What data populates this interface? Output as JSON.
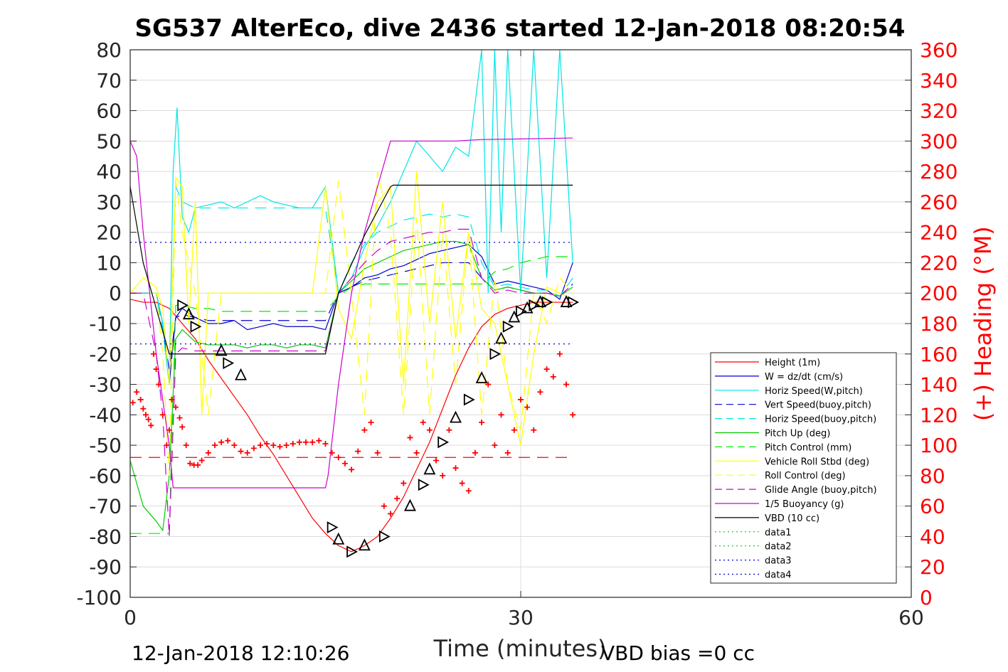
{
  "chart_data": {
    "type": "line",
    "title": "SG537 AlterEco, dive 2436 started 12-Jan-2018 08:20:54",
    "xlabel": "Time (minutes)",
    "ylabel_left": "",
    "ylabel_right": "(+) Heading (°M)",
    "xlim": [
      0,
      60
    ],
    "ylim": [
      -100,
      80
    ],
    "ylim_right": [
      0,
      360
    ],
    "x_ticks": [
      "0",
      "30",
      "60"
    ],
    "y_ticks": [
      "80",
      "70",
      "60",
      "50",
      "40",
      "30",
      "20",
      "10",
      "0",
      "-10",
      "-20",
      "-30",
      "-40",
      "-50",
      "-60",
      "-70",
      "-80",
      "-90",
      "-100"
    ],
    "y_ticks_right": [
      "360",
      "340",
      "320",
      "300",
      "280",
      "260",
      "240",
      "220",
      "200",
      "180",
      "160",
      "140",
      "120",
      "100",
      "80",
      "60",
      "40",
      "20",
      "0"
    ],
    "grid": true,
    "legend_position": "bottom-right",
    "footer_left": "12-Jan-2018 12:10:26",
    "footer_right": "VBD bias =0 cc",
    "colors": {
      "height": "#ff0000",
      "w": "#0000cc",
      "horiz_w": "#00e5e5",
      "vert_buoy": "#0000cc",
      "horiz_buoy": "#00e5e5",
      "pitch_up": "#00cc00",
      "pitch_ctrl": "#00ee00",
      "roll": "#ffff00",
      "roll_ctrl": "#ffff00",
      "glide": "#cc00cc",
      "buoyancy": "#cc00cc",
      "vbd": "#000000",
      "heading": "#ff0000"
    },
    "series": [
      {
        "name": "Height (1m)",
        "style": "solid",
        "color": "#ff0000",
        "x": [
          0,
          1,
          2,
          3,
          4,
          5,
          6,
          7,
          8,
          9,
          10,
          11,
          12,
          13,
          14,
          15,
          16,
          17,
          18,
          19,
          20,
          21,
          22,
          23,
          24,
          25,
          26,
          27,
          28,
          29,
          30,
          31,
          32,
          33,
          34
        ],
        "y": [
          -2,
          -3,
          -3,
          -5,
          -10,
          -15,
          -22,
          -28,
          -34,
          -40,
          -47,
          -53,
          -60,
          -67,
          -74,
          -79,
          -83,
          -85,
          -83,
          -80,
          -74,
          -67,
          -58,
          -49,
          -38,
          -27,
          -18,
          -11,
          -7,
          -5,
          -4,
          -3,
          -3,
          -3,
          -3
        ]
      },
      {
        "name": "W = dz/dt (cm/s)",
        "style": "solid",
        "color": "#0000cc",
        "x": [
          0,
          1,
          2,
          2.5,
          3,
          3.5,
          4,
          5,
          6,
          7,
          8,
          9,
          10,
          11,
          12,
          13,
          14,
          15,
          16,
          17,
          18,
          19,
          20,
          21,
          22,
          23,
          24,
          25,
          26,
          27,
          28,
          29,
          30,
          31,
          32,
          33,
          34
        ],
        "y": [
          0,
          0,
          0,
          -10,
          -30,
          -8,
          -5,
          -8,
          -10,
          -10,
          -9,
          -12,
          -11,
          -10,
          -11,
          -11,
          -11,
          -12,
          0,
          2,
          5,
          6,
          8,
          9,
          11,
          13,
          14,
          15,
          16,
          12,
          3,
          4,
          3,
          2,
          1,
          -2,
          10
        ]
      },
      {
        "name": "Horiz Speed(W,pitch)",
        "style": "solid",
        "color": "#00e5e5",
        "x": [
          0,
          1,
          2,
          2.5,
          3,
          3.3,
          3.6,
          4,
          4.5,
          5,
          6,
          7,
          8,
          9,
          10,
          11,
          12,
          13,
          14,
          15,
          16,
          17,
          18,
          19,
          20,
          21,
          22,
          23,
          24,
          25,
          26,
          27,
          27.5,
          28,
          28.5,
          29,
          30,
          31,
          32,
          33,
          34
        ],
        "y": [
          0,
          0,
          0,
          -10,
          -30,
          40,
          61,
          25,
          20,
          28,
          29,
          30,
          28,
          30,
          32,
          30,
          29,
          28,
          28,
          35,
          0,
          5,
          15,
          22,
          30,
          40,
          50,
          45,
          40,
          48,
          45,
          80,
          0,
          80,
          20,
          80,
          0,
          80,
          5,
          80,
          10
        ]
      },
      {
        "name": "Vert Speed(buoy,pitch)",
        "style": "dash",
        "color": "#0000cc",
        "x": [
          0,
          1,
          2,
          2.5,
          3,
          3.5,
          4,
          5,
          6,
          7,
          8,
          9,
          10,
          11,
          12,
          13,
          14,
          15,
          16,
          17,
          18,
          19,
          20,
          21,
          22,
          23,
          24,
          25,
          26,
          27,
          28,
          29,
          30,
          31,
          32,
          33,
          34
        ],
        "y": [
          0,
          0,
          0,
          -12,
          -25,
          -8,
          -7,
          -8,
          -9,
          -9,
          -9,
          -9,
          -9,
          -9,
          -9,
          -9,
          -9,
          -9,
          0,
          2,
          4,
          5,
          6,
          7,
          8,
          9,
          10,
          10,
          10,
          5,
          1,
          2,
          1,
          0,
          0,
          -1,
          3
        ]
      },
      {
        "name": "Horiz Speed(buoy,pitch)",
        "style": "dash",
        "color": "#00e5e5",
        "x": [
          0,
          1,
          2,
          2.5,
          3,
          3.5,
          4,
          5,
          6,
          7,
          8,
          9,
          10,
          11,
          12,
          13,
          14,
          15,
          16,
          17,
          18,
          19,
          20,
          21,
          22,
          23,
          24,
          25,
          26,
          27,
          28,
          29,
          30,
          31,
          32,
          33,
          34
        ],
        "y": [
          0,
          0,
          0,
          -12,
          -30,
          35,
          30,
          28,
          28,
          28,
          28,
          28,
          28,
          28,
          28,
          28,
          28,
          28,
          0,
          10,
          16,
          20,
          22,
          24,
          25,
          26,
          25,
          26,
          25,
          10,
          2,
          3,
          2,
          1,
          1,
          -1,
          5
        ]
      },
      {
        "name": "Pitch Up (deg)",
        "style": "solid",
        "color": "#00cc00",
        "x": [
          0,
          1,
          2,
          2.5,
          3,
          3.5,
          4,
          5,
          6,
          7,
          8,
          9,
          10,
          11,
          12,
          13,
          14,
          15,
          16,
          17,
          18,
          19,
          20,
          21,
          22,
          23,
          24,
          25,
          26,
          27,
          28,
          29,
          30,
          31,
          32,
          33,
          34
        ],
        "y": [
          -55,
          -70,
          -75,
          -78,
          -60,
          -15,
          -12,
          -16,
          -17,
          -17,
          -17,
          -18,
          -17,
          -17,
          -18,
          -17,
          -17,
          -18,
          0,
          4,
          8,
          10,
          12,
          14,
          15,
          16,
          17,
          17,
          16,
          5,
          1,
          2,
          1,
          0,
          0,
          -1,
          2
        ]
      },
      {
        "name": "Pitch Control (mm)",
        "style": "dash",
        "color": "#00ee00",
        "x": [
          0,
          1,
          2,
          2.5,
          3,
          3.5,
          4,
          5,
          6,
          7,
          8,
          9,
          10,
          11,
          12,
          13,
          14,
          15,
          16,
          17,
          18,
          19,
          20,
          21,
          22,
          23,
          24,
          25,
          26,
          27,
          28,
          29,
          30,
          31,
          32,
          33,
          34
        ],
        "y": [
          -79,
          -79,
          -79,
          -79,
          -79,
          -4,
          -4,
          -5,
          -5,
          -6,
          -6,
          -6,
          -6,
          -6,
          -6,
          -6,
          -6,
          -6,
          -1,
          2,
          3,
          3,
          3,
          3,
          3,
          3,
          3,
          3,
          3,
          3,
          7,
          8,
          10,
          11,
          12,
          12,
          12
        ]
      },
      {
        "name": "Vehicle Roll Stbd (deg)",
        "style": "solid",
        "color": "#ffff00",
        "x": [
          0,
          1,
          2,
          2.5,
          3,
          3.5,
          4,
          4.5,
          5,
          5.5,
          6,
          7,
          8,
          9,
          10,
          11,
          12,
          13,
          14,
          15,
          16,
          17,
          18,
          19,
          20,
          21,
          22,
          23,
          24,
          25,
          26,
          27,
          28,
          29,
          30,
          31,
          32,
          33,
          34
        ],
        "y": [
          0,
          5,
          2,
          -5,
          -30,
          38,
          35,
          -10,
          30,
          -40,
          0,
          0,
          0,
          0,
          0,
          0,
          0,
          0,
          0,
          35,
          -5,
          -15,
          10,
          30,
          35,
          -30,
          40,
          -10,
          30,
          -15,
          20,
          -5,
          -10,
          -30,
          -50,
          -20,
          2,
          0,
          -2
        ]
      },
      {
        "name": "Roll Control (deg)",
        "style": "dash",
        "color": "#ffff00",
        "x": [
          0,
          1,
          2,
          2.5,
          3,
          3.5,
          4,
          5,
          6,
          7,
          8,
          9,
          10,
          11,
          12,
          13,
          14,
          15,
          16,
          17,
          18,
          19,
          20,
          21,
          22,
          23,
          24,
          25,
          26,
          27,
          28,
          29,
          30,
          31,
          32,
          33,
          34
        ],
        "y": [
          0,
          0,
          0,
          -20,
          -60,
          37,
          20,
          0,
          -40,
          0,
          0,
          0,
          0,
          0,
          0,
          0,
          0,
          0,
          37,
          0,
          -40,
          40,
          20,
          -40,
          25,
          -40,
          20,
          -30,
          20,
          -40,
          5,
          -30,
          -45,
          0,
          -10,
          5,
          0
        ]
      },
      {
        "name": "Glide Angle (buoy,pitch)",
        "style": "dash",
        "color": "#cc00cc",
        "x": [
          0,
          1,
          2,
          2.5,
          3,
          3.5,
          4,
          5,
          6,
          7,
          8,
          9,
          10,
          11,
          12,
          13,
          14,
          15,
          16,
          17,
          18,
          19,
          20,
          21,
          22,
          23,
          24,
          25,
          26,
          27,
          28,
          29,
          30,
          31,
          32,
          33,
          34
        ],
        "y": [
          0,
          0,
          -20,
          -40,
          -80,
          -20,
          -18,
          -19,
          -19,
          -19,
          -19,
          -19,
          -19,
          -19,
          -19,
          -19,
          -19,
          -19,
          0,
          5,
          10,
          14,
          17,
          18,
          19,
          20,
          20,
          21,
          21,
          5,
          0,
          1,
          0,
          0,
          0,
          -1,
          3
        ]
      },
      {
        "name": "1/5 Buoyancy (g)",
        "style": "solid",
        "color": "#cc00cc",
        "x": [
          0,
          0.5,
          1,
          2,
          3,
          3.3,
          15,
          15.2,
          16,
          17,
          18,
          20,
          20.2,
          22,
          25,
          27,
          30,
          34
        ],
        "y": [
          50,
          45,
          20,
          -20,
          -50,
          -64,
          -64,
          -60,
          -30,
          0,
          20,
          50,
          50,
          50,
          50,
          50.5,
          50.7,
          51
        ]
      },
      {
        "name": "VBD (10 cc)",
        "style": "solid",
        "color": "#000000",
        "x": [
          0,
          1,
          2,
          3,
          15,
          16,
          18,
          20,
          20.2,
          25,
          30,
          34
        ],
        "y": [
          35,
          10,
          -5,
          -20,
          -20,
          0,
          19,
          35,
          35.5,
          35.5,
          35.5,
          35.5
        ]
      },
      {
        "name": "data1",
        "style": "dot",
        "color": "#00cc00",
        "x": [],
        "y": []
      },
      {
        "name": "data2",
        "style": "dot",
        "color": "#00cc00",
        "x": [],
        "y": []
      },
      {
        "name": "data3",
        "style": "dot",
        "color": "#0000cc",
        "x": [
          0,
          34
        ],
        "y": [
          16.7,
          16.7
        ]
      },
      {
        "name": "data4",
        "style": "dot",
        "color": "#0000cc",
        "x": [
          0,
          34
        ],
        "y": [
          -16.7,
          -16.7
        ]
      }
    ],
    "heading_reference": {
      "axis": "right",
      "style": "dash",
      "color": "#ff0000",
      "value": 92
    },
    "heading_points": {
      "axis": "right",
      "marker": "+",
      "color": "#ff0000",
      "x": [
        0.2,
        0.5,
        0.8,
        1.0,
        1.2,
        1.4,
        1.6,
        1.8,
        2.0,
        2.2,
        2.5,
        2.8,
        3.0,
        3.2,
        3.5,
        3.8,
        4.0,
        4.3,
        4.6,
        4.9,
        5.2,
        5.5,
        6.0,
        6.5,
        7.0,
        7.5,
        8.0,
        8.5,
        9.0,
        9.5,
        10,
        10.5,
        11,
        11.5,
        12,
        12.5,
        13,
        13.5,
        14,
        14.5,
        15,
        15.5,
        16,
        16.5,
        17,
        17.5,
        18,
        18.5,
        19,
        19.5,
        20,
        20.5,
        21,
        21.5,
        22,
        22.5,
        23,
        23.5,
        24,
        24.5,
        25,
        25.5,
        26,
        26.5,
        27,
        27.5,
        28,
        28.5,
        29,
        29.5,
        30,
        30.5,
        31,
        31.5,
        32,
        32.5,
        33,
        33.5,
        34
      ],
      "y": [
        128,
        135,
        130,
        124,
        120,
        117,
        113,
        160,
        150,
        140,
        120,
        100,
        110,
        130,
        125,
        118,
        112,
        100,
        88,
        87,
        87,
        90,
        95,
        100,
        102,
        103,
        100,
        96,
        95,
        98,
        100,
        101,
        100,
        99,
        100,
        101,
        102,
        102,
        102,
        103,
        101,
        95,
        92,
        88,
        84,
        96,
        110,
        115,
        95,
        60,
        55,
        65,
        75,
        105,
        95,
        115,
        110,
        90,
        80,
        110,
        85,
        75,
        70,
        95,
        115,
        140,
        100,
        120,
        95,
        110,
        130,
        125,
        110,
        135,
        150,
        145,
        160,
        140,
        120
      ]
    },
    "vbd_markers": {
      "axis": "left",
      "color": "#000000",
      "x": [
        4,
        4.5,
        5,
        7,
        7.5,
        8.5,
        15.5,
        16,
        17,
        18,
        19.5,
        21.5,
        22.5,
        23,
        24,
        25,
        26,
        27,
        28,
        28.5,
        29,
        29.5,
        30,
        30.5,
        31,
        31.5,
        32,
        33.5,
        34
      ],
      "y": [
        -4,
        -7,
        -11,
        -19,
        -23,
        -27,
        -77,
        -81,
        -85,
        -83,
        -80,
        -70,
        -63,
        -58,
        -49,
        -41,
        -35,
        -28,
        -20,
        -15,
        -11,
        -8,
        -6,
        -5,
        -4,
        -3,
        -3,
        -3,
        -3
      ]
    }
  }
}
